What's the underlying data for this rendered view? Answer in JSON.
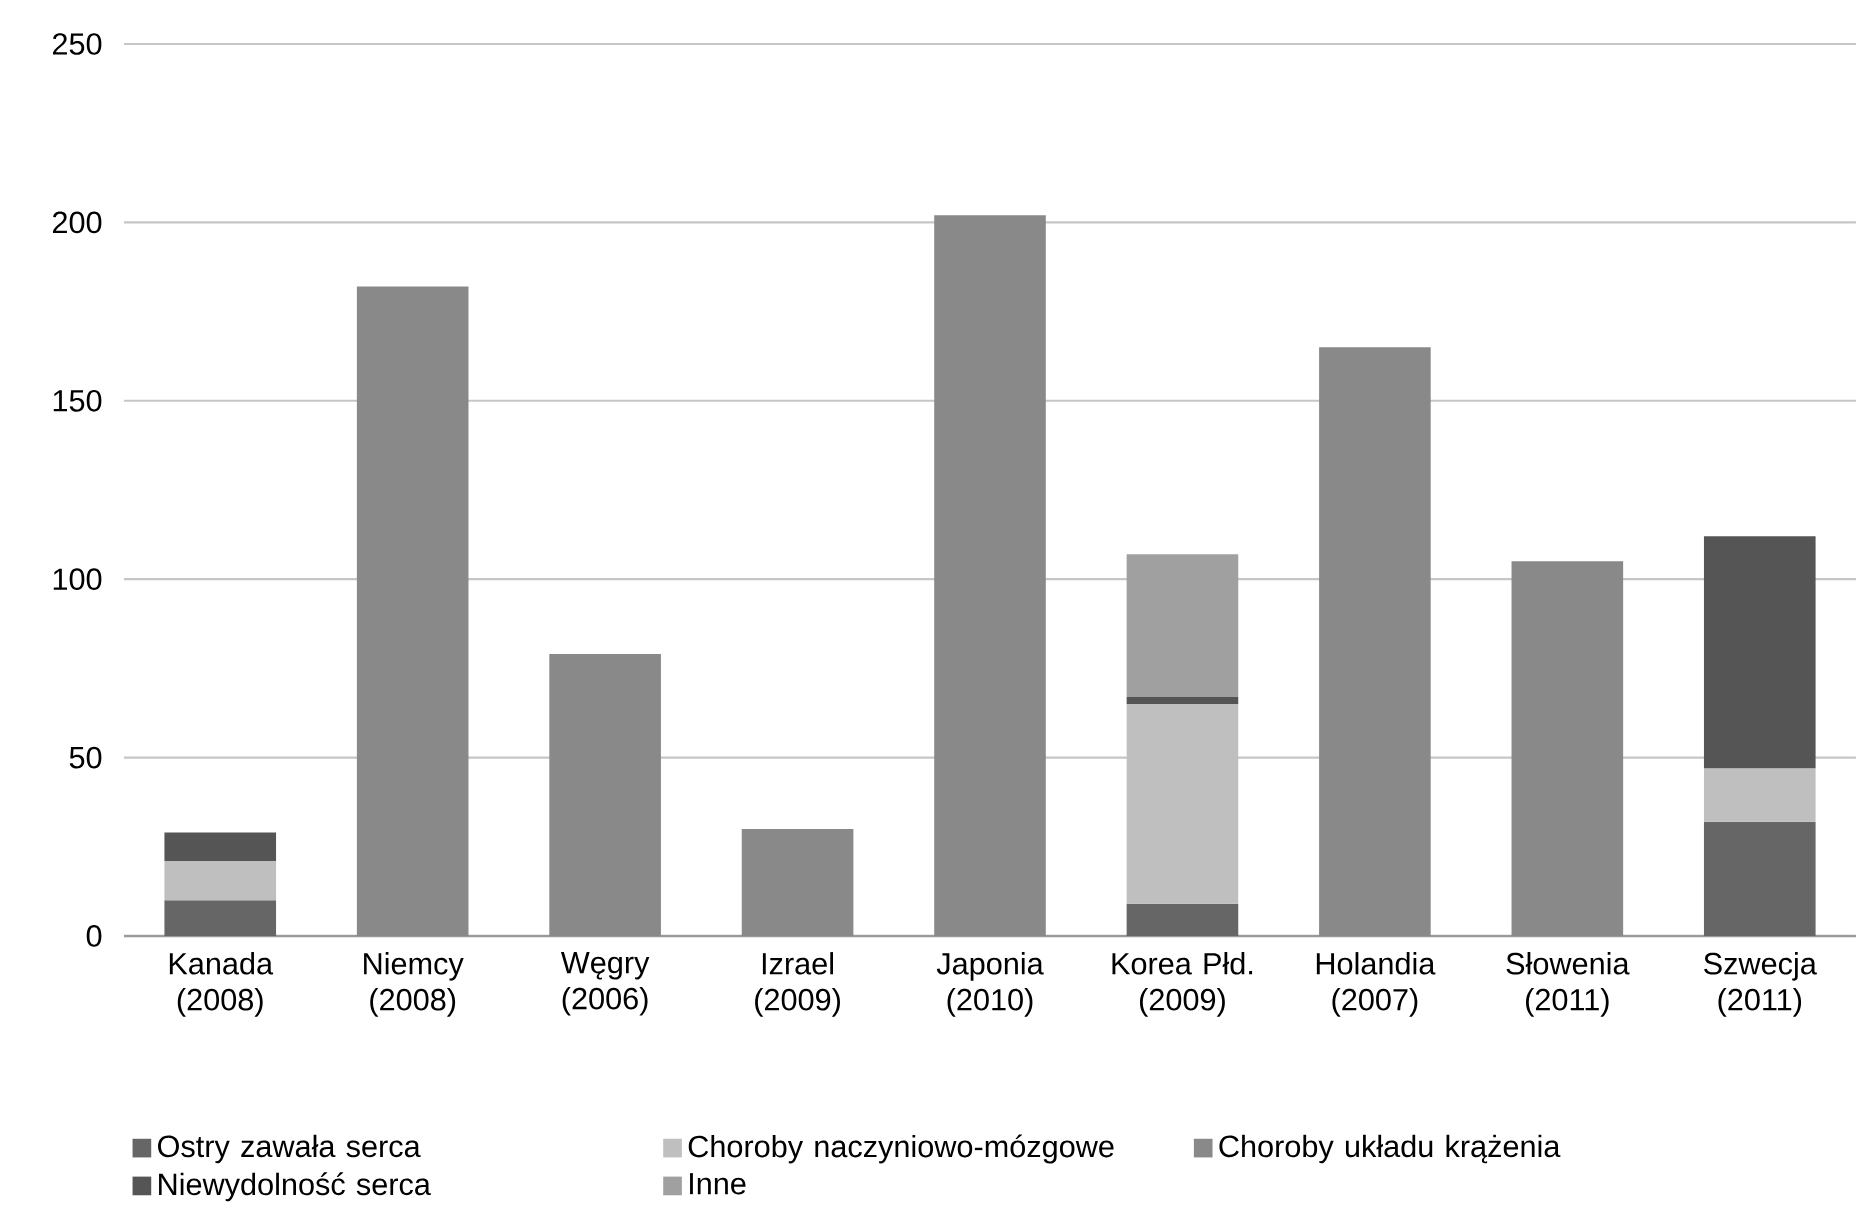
{
  "chart_data": {
    "type": "bar",
    "stacked": true,
    "categories": [
      "Kanada (2008)",
      "Niemcy (2008)",
      "Węgry (2006)",
      "Izrael (2009)",
      "Japonia (2010)",
      "Korea Płd. (2009)",
      "Holandia (2007)",
      "Słowenia (2011)",
      "Szwecja (2011)"
    ],
    "series": [
      {
        "name": "Ostry zawała serca",
        "color": "#666666",
        "values": [
          10,
          null,
          null,
          null,
          null,
          9,
          null,
          null,
          32
        ]
      },
      {
        "name": "Choroby naczyniowo-mózgowe",
        "color": "#bfbfbf",
        "values": [
          11,
          null,
          null,
          null,
          null,
          56,
          null,
          null,
          15
        ]
      },
      {
        "name": "Choroby układu krążenia",
        "color": "#898989",
        "values": [
          null,
          182,
          79,
          30,
          202,
          null,
          165,
          105,
          null
        ]
      },
      {
        "name": "Niewydolność serca",
        "color": "#555555",
        "values": [
          8,
          null,
          null,
          null,
          null,
          2,
          null,
          null,
          65
        ]
      },
      {
        "name": "Inne",
        "color": "#a0a0a0",
        "values": [
          null,
          null,
          null,
          null,
          null,
          40,
          null,
          null,
          null
        ]
      }
    ],
    "ylim": [
      0,
      250
    ],
    "yticks": [
      0,
      50,
      100,
      150,
      200,
      250
    ],
    "grid": "y",
    "legend": "bottom"
  }
}
